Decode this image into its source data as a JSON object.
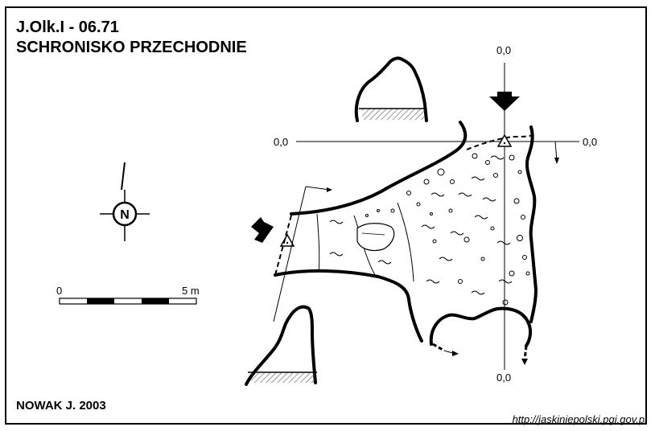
{
  "header": {
    "cave_code": "J.Olk.I - 06.71",
    "cave_name": "SCHRONISKO PRZECHODNIE"
  },
  "footer": {
    "author": "NOWAK J.  2003",
    "source_url": "http://jaskiniepolski.pgi.gov.pl"
  },
  "compass": {
    "north_label": "N"
  },
  "scale_bar": {
    "start_label": "0",
    "end_label": "5 m"
  },
  "section_markers": {
    "top": "0,0",
    "left": "0,0",
    "right": "0,0",
    "bottom": "0,0"
  },
  "colors": {
    "ink": "#000000",
    "paper": "#ffffff",
    "hatch": "#555555"
  }
}
